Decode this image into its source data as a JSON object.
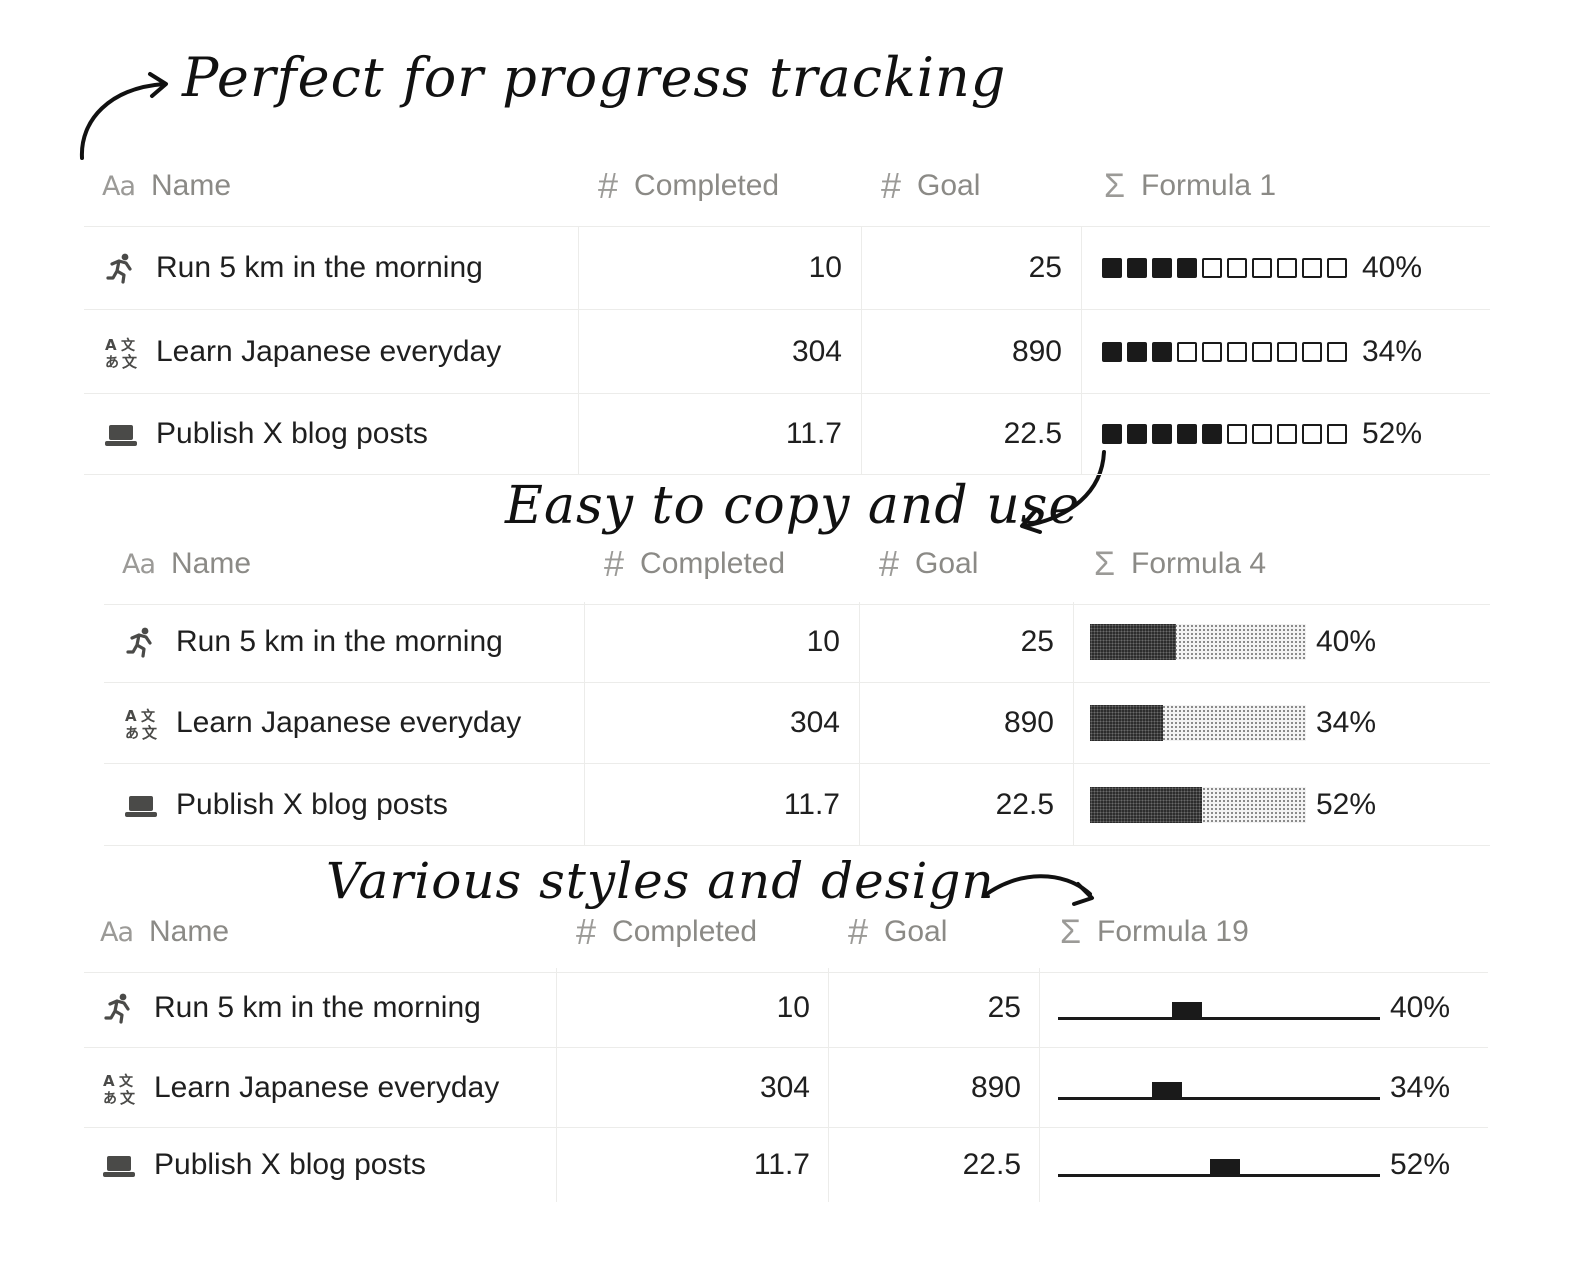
{
  "captions": {
    "top": "Perfect for progress tracking",
    "middle": "Easy to copy and use",
    "bottom": "Various styles and design"
  },
  "header_icons": {
    "name": "Aa",
    "number": "#",
    "formula": "Σ"
  },
  "tables": [
    {
      "style": "squares",
      "columns": {
        "name": "Name",
        "completed": "Completed",
        "goal": "Goal",
        "formula": "Formula 1"
      },
      "rows": [
        {
          "icon": "running-icon",
          "name": "Run 5 km in the morning",
          "completed": "10",
          "goal": "25",
          "progress": 0.4,
          "percent": "40%"
        },
        {
          "icon": "translate-icon",
          "name": "Learn Japanese everyday",
          "completed": "304",
          "goal": "890",
          "progress": 0.34,
          "percent": "34%"
        },
        {
          "icon": "laptop-icon",
          "name": "Publish X blog posts",
          "completed": "11.7",
          "goal": "22.5",
          "progress": 0.52,
          "percent": "52%"
        }
      ]
    },
    {
      "style": "dotted-bar",
      "columns": {
        "name": "Name",
        "completed": "Completed",
        "goal": "Goal",
        "formula": "Formula 4"
      },
      "rows": [
        {
          "icon": "running-icon",
          "name": "Run 5 km in the morning",
          "completed": "10",
          "goal": "25",
          "progress": 0.4,
          "percent": "40%"
        },
        {
          "icon": "translate-icon",
          "name": "Learn Japanese everyday",
          "completed": "304",
          "goal": "890",
          "progress": 0.34,
          "percent": "34%"
        },
        {
          "icon": "laptop-icon",
          "name": "Publish X blog posts",
          "completed": "11.7",
          "goal": "22.5",
          "progress": 0.52,
          "percent": "52%"
        }
      ]
    },
    {
      "style": "line-marker",
      "columns": {
        "name": "Name",
        "completed": "Completed",
        "goal": "Goal",
        "formula": "Formula 19"
      },
      "rows": [
        {
          "icon": "running-icon",
          "name": "Run 5 km in the morning",
          "completed": "10",
          "goal": "25",
          "progress": 0.4,
          "percent": "40%"
        },
        {
          "icon": "translate-icon",
          "name": "Learn Japanese everyday",
          "completed": "304",
          "goal": "890",
          "progress": 0.34,
          "percent": "34%"
        },
        {
          "icon": "laptop-icon",
          "name": "Publish X blog posts",
          "completed": "11.7",
          "goal": "22.5",
          "progress": 0.52,
          "percent": "52%"
        }
      ]
    }
  ]
}
